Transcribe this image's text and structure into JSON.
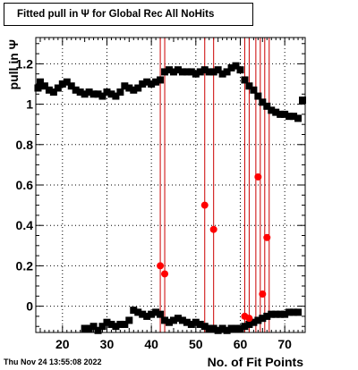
{
  "title": "Fitted pull in  Ψ  for Global Rec All NoHits",
  "timestamp": "Thu Nov 24 13:55:08 2022",
  "chart_data": {
    "type": "scatter",
    "title": "Fitted pull in  Ψ  for Global Rec All NoHits",
    "xlabel": "No. of Fit Points",
    "ylabel": "pull in  Ψ",
    "xlim": [
      14,
      74.6
    ],
    "ylim": [
      -0.13,
      1.33
    ],
    "xticks": [
      20,
      30,
      40,
      50,
      60,
      70
    ],
    "yticks": [
      0,
      0.2,
      0.4,
      0.6,
      0.8,
      1,
      1.2
    ],
    "ytick_labels": [
      "0",
      "0.2",
      "0.4",
      "0.6",
      "0.8",
      "1",
      "1.2"
    ],
    "grid": true,
    "series": [
      {
        "kind": "upper",
        "color": "#000000",
        "marker": "square",
        "x": [
          14.5,
          15,
          16,
          17,
          18,
          19,
          20,
          21,
          22,
          23,
          24,
          25,
          26,
          27,
          28,
          29,
          30,
          31,
          32,
          33,
          34,
          35,
          36,
          37,
          38,
          39,
          40,
          41,
          42,
          43,
          44,
          45,
          46,
          47,
          48,
          49,
          50,
          51,
          52,
          53,
          54,
          55,
          56,
          57,
          58,
          59,
          60,
          61,
          62,
          63,
          64,
          65,
          66,
          67,
          68,
          69,
          70,
          71,
          72,
          73,
          74
        ],
        "y": [
          1.08,
          1.11,
          1.09,
          1.07,
          1.06,
          1.08,
          1.1,
          1.11,
          1.09,
          1.07,
          1.06,
          1.05,
          1.06,
          1.05,
          1.05,
          1.04,
          1.06,
          1.05,
          1.04,
          1.06,
          1.09,
          1.08,
          1.07,
          1.08,
          1.1,
          1.11,
          1.1,
          1.11,
          1.12,
          1.16,
          1.17,
          1.16,
          1.17,
          1.16,
          1.16,
          1.16,
          1.15,
          1.16,
          1.17,
          1.16,
          1.16,
          1.17,
          1.15,
          1.16,
          1.18,
          1.19,
          1.17,
          1.12,
          1.09,
          1.07,
          1.04,
          1.01,
          0.99,
          0.97,
          0.96,
          0.95,
          0.95,
          0.94,
          0.94,
          0.93,
          1.02
        ]
      },
      {
        "kind": "lower",
        "color": "#000000",
        "marker": "square",
        "x": [
          25,
          26,
          27,
          28,
          29,
          30,
          31,
          32,
          33,
          34,
          35,
          36,
          37,
          38,
          39,
          40,
          41,
          42,
          43,
          44,
          45,
          46,
          47,
          48,
          49,
          50,
          51,
          52,
          53,
          54,
          55,
          56,
          57,
          58,
          59,
          60,
          61,
          62,
          63,
          64,
          65,
          66,
          67,
          68,
          69,
          70,
          71,
          72,
          73
        ],
        "y": [
          -0.11,
          -0.11,
          -0.1,
          -0.12,
          -0.1,
          -0.08,
          -0.09,
          -0.1,
          -0.09,
          -0.09,
          -0.07,
          -0.02,
          -0.03,
          -0.04,
          -0.05,
          -0.04,
          -0.03,
          -0.04,
          -0.07,
          -0.08,
          -0.07,
          -0.06,
          -0.07,
          -0.08,
          -0.09,
          -0.08,
          -0.09,
          -0.1,
          -0.11,
          -0.11,
          -0.12,
          -0.11,
          -0.12,
          -0.11,
          -0.11,
          -0.11,
          -0.1,
          -0.09,
          -0.08,
          -0.07,
          -0.06,
          -0.05,
          -0.04,
          -0.04,
          -0.04,
          -0.04,
          -0.03,
          -0.03,
          -0.03
        ]
      },
      {
        "kind": "outliers",
        "color": "#ff0000",
        "marker": "circle",
        "x": [
          42,
          43,
          52,
          54,
          61,
          62,
          64,
          65,
          66
        ],
        "y": [
          0.2,
          0.16,
          0.5,
          0.38,
          -0.05,
          -0.06,
          0.64,
          0.06,
          0.34
        ]
      }
    ],
    "vlines": {
      "color": "#cc0000",
      "x": [
        42,
        43,
        52,
        54,
        61,
        62,
        63.5,
        64.5,
        65.5,
        66.5
      ]
    }
  }
}
